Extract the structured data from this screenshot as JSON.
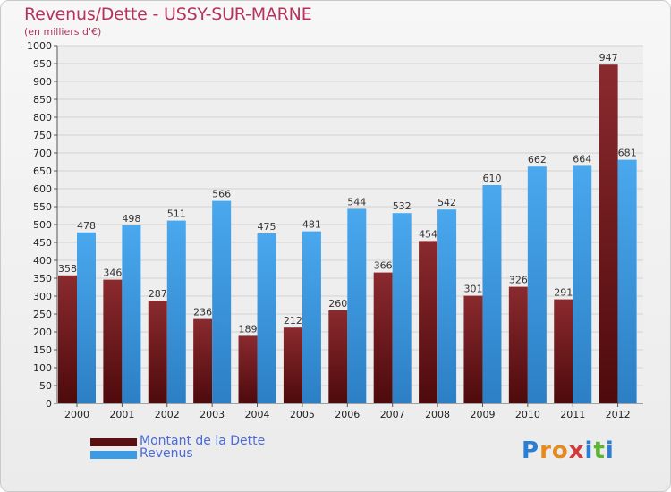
{
  "title": "Revenus/Dette - USSY-SUR-MARNE",
  "subtitle": "(en milliers d'€)",
  "legend": {
    "items": [
      {
        "label": "Montant de la Dette",
        "color": "#7a1a1e"
      },
      {
        "label": "Revenus",
        "color": "#3d9be3"
      }
    ]
  },
  "logo": {
    "text": "Proxiti",
    "colors": [
      "#2a7fd4",
      "#e68a1e",
      "#e68a1e",
      "#d23a3a",
      "#2a7fd4",
      "#5cb531",
      "#2a7fd4"
    ]
  },
  "chart_data": {
    "type": "bar",
    "title": "Revenus/Dette - USSY-SUR-MARNE",
    "subtitle": "(en milliers d'€)",
    "categories": [
      "2000",
      "2001",
      "2002",
      "2003",
      "2004",
      "2005",
      "2006",
      "2007",
      "2008",
      "2009",
      "2010",
      "2011",
      "2012"
    ],
    "series": [
      {
        "name": "Montant de la Dette",
        "color": "#7a1a1e",
        "values": [
          358,
          346,
          287,
          236,
          189,
          212,
          260,
          366,
          454,
          301,
          326,
          291,
          947
        ]
      },
      {
        "name": "Revenus",
        "color": "#3d9be3",
        "values": [
          478,
          498,
          511,
          566,
          475,
          481,
          544,
          532,
          542,
          610,
          662,
          664,
          681
        ]
      }
    ],
    "ylim": [
      0,
      1000
    ],
    "yticks": [
      0,
      50,
      100,
      150,
      200,
      250,
      300,
      350,
      400,
      450,
      500,
      550,
      600,
      650,
      700,
      750,
      800,
      850,
      900,
      950,
      1000
    ],
    "grid": true,
    "legend_position": "bottom-left"
  }
}
